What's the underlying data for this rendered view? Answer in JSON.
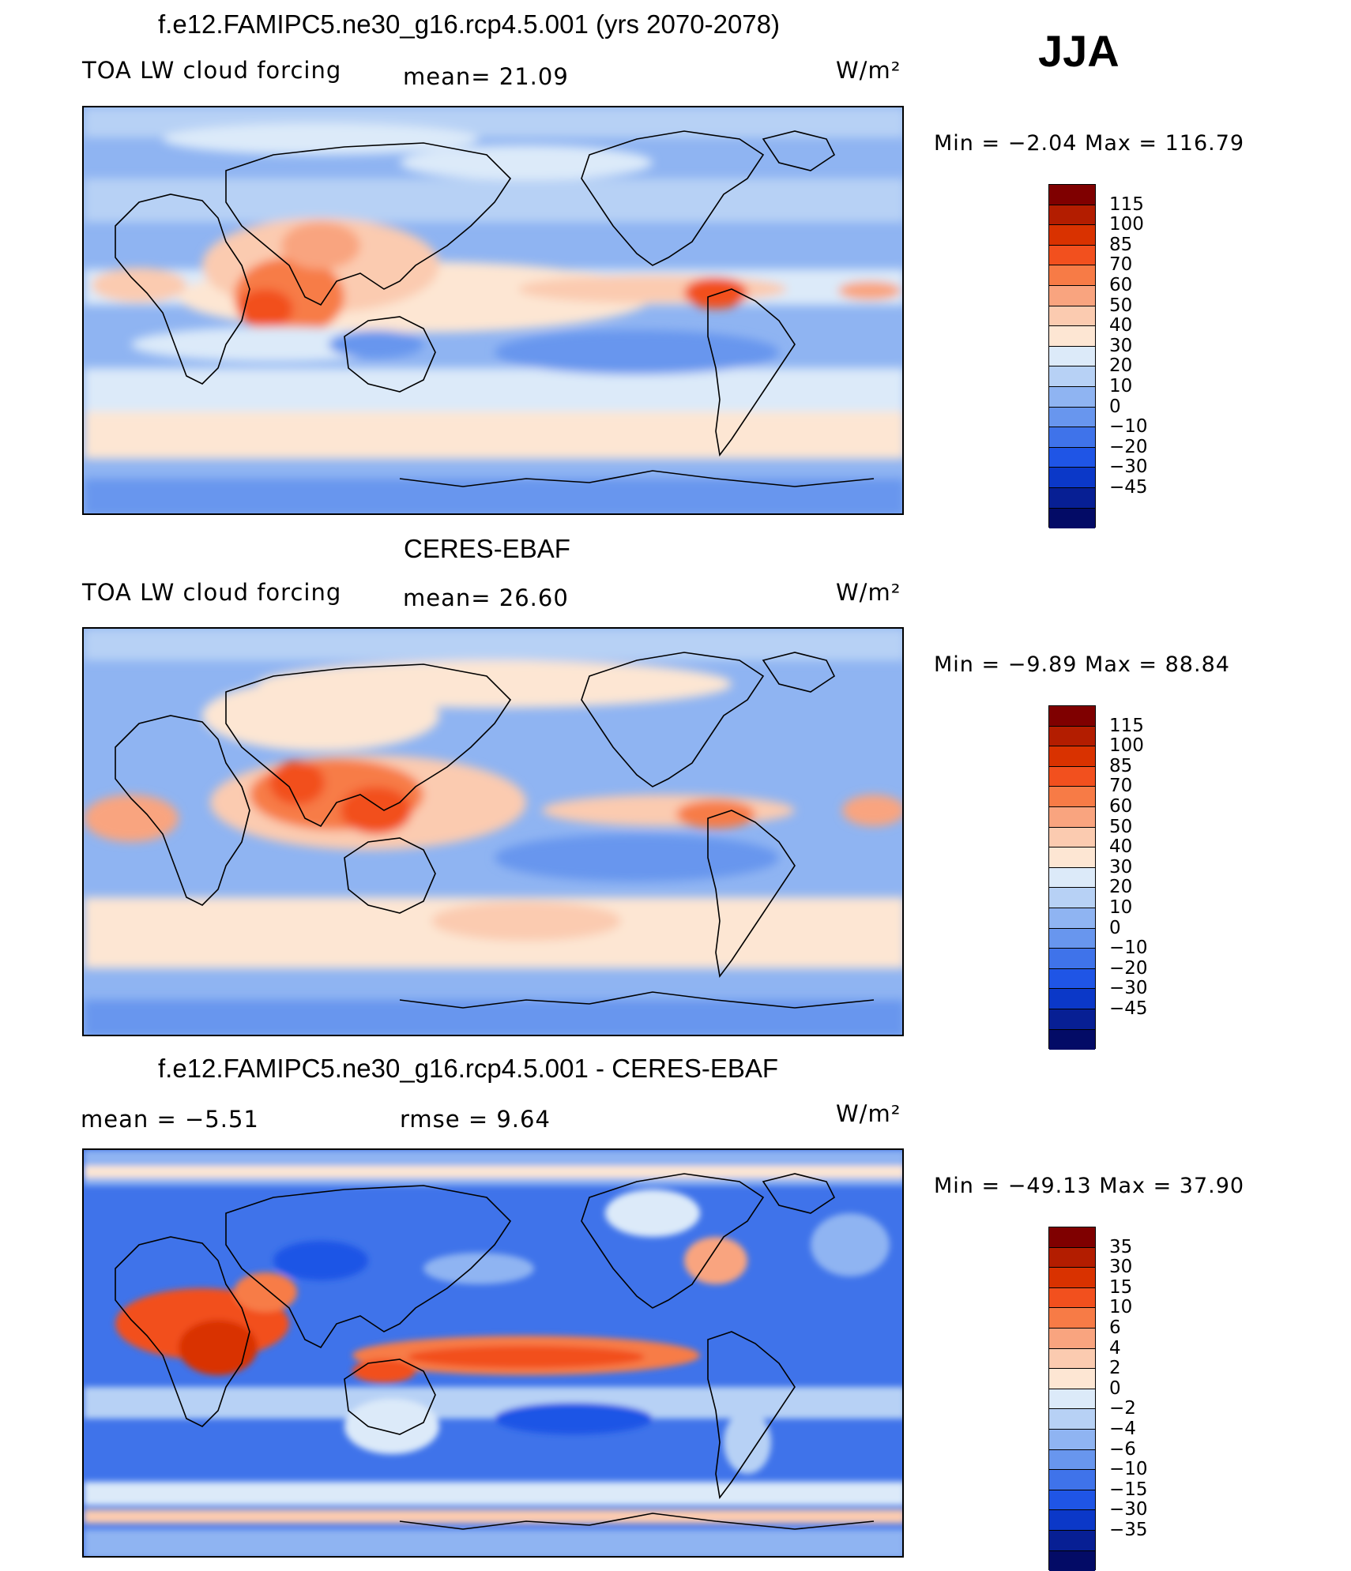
{
  "season": "JJA",
  "units": "W/m²",
  "panels": [
    {
      "title": "f.e12.FAMIPC5.ne30_g16.rcp4.5.001 (yrs 2070-2078)",
      "variable": "TOA LW cloud forcing",
      "stat1": "mean=  21.09",
      "stat2": "",
      "minmax": "Min  =   −2.04  Max  =  116.79",
      "levels": [
        "115",
        "100",
        "85",
        "70",
        "60",
        "50",
        "40",
        "30",
        "20",
        "10",
        "0",
        "−10",
        "−20",
        "−30",
        "−45"
      ],
      "colors": [
        "#7f0000",
        "#b31d00",
        "#d93200",
        "#f2501e",
        "#f77b46",
        "#f9a47f",
        "#fbcbb0",
        "#fde6d3",
        "#dceaf9",
        "#b7d1f5",
        "#8fb4f2",
        "#6896ee",
        "#3f73ea",
        "#1f55e6",
        "#0b38c8",
        "#071f94",
        "#030b66"
      ]
    },
    {
      "title": "CERES-EBAF",
      "variable": "TOA LW cloud forcing",
      "stat1": "mean=  26.60",
      "stat2": "",
      "minmax": "Min  =   −9.89  Max  =   88.84",
      "levels": [
        "115",
        "100",
        "85",
        "70",
        "60",
        "50",
        "40",
        "30",
        "20",
        "10",
        "0",
        "−10",
        "−20",
        "−30",
        "−45"
      ],
      "colors": [
        "#7f0000",
        "#b31d00",
        "#d93200",
        "#f2501e",
        "#f77b46",
        "#f9a47f",
        "#fbcbb0",
        "#fde6d3",
        "#dceaf9",
        "#b7d1f5",
        "#8fb4f2",
        "#6896ee",
        "#3f73ea",
        "#1f55e6",
        "#0b38c8",
        "#071f94",
        "#030b66"
      ]
    },
    {
      "title": "f.e12.FAMIPC5.ne30_g16.rcp4.5.001 - CERES-EBAF",
      "variable": "",
      "stat1": "mean  =   −5.51",
      "stat2": "rmse  =    9.64",
      "minmax": "Min  = −49.13  Max  =   37.90",
      "levels": [
        "35",
        "30",
        "15",
        "10",
        "6",
        "4",
        "2",
        "0",
        "−2",
        "−4",
        "−6",
        "−10",
        "−15",
        "−30",
        "−35"
      ],
      "colors": [
        "#7f0000",
        "#b31d00",
        "#d93200",
        "#f2501e",
        "#f77b46",
        "#f9a47f",
        "#fbcbb0",
        "#fde6d3",
        "#dceaf9",
        "#b7d1f5",
        "#8fb4f2",
        "#6896ee",
        "#3f73ea",
        "#1f55e6",
        "#0b38c8",
        "#071f94",
        "#030b66"
      ]
    }
  ]
}
